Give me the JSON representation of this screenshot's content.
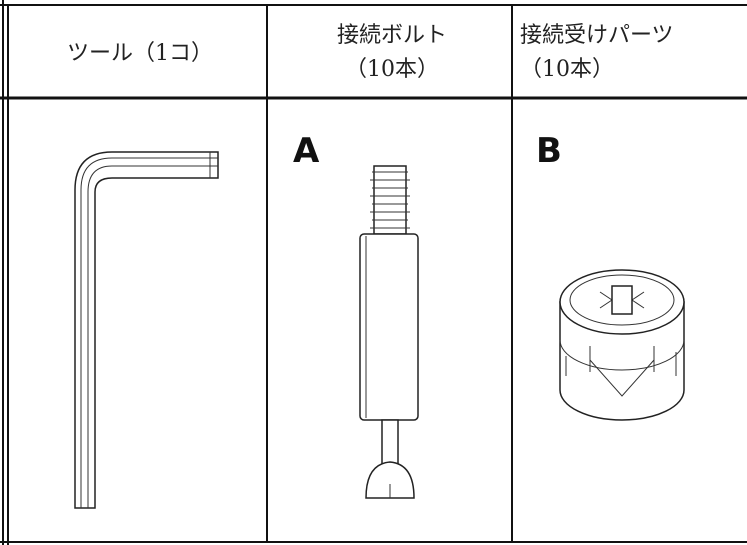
{
  "table": {
    "headers": [
      [
        "ツール（1コ）"
      ],
      [
        "接続ボルト",
        "（10本）"
      ],
      [
        "接続受けパーツ",
        "（10本）"
      ]
    ],
    "labels": [
      "A",
      "B"
    ]
  }
}
